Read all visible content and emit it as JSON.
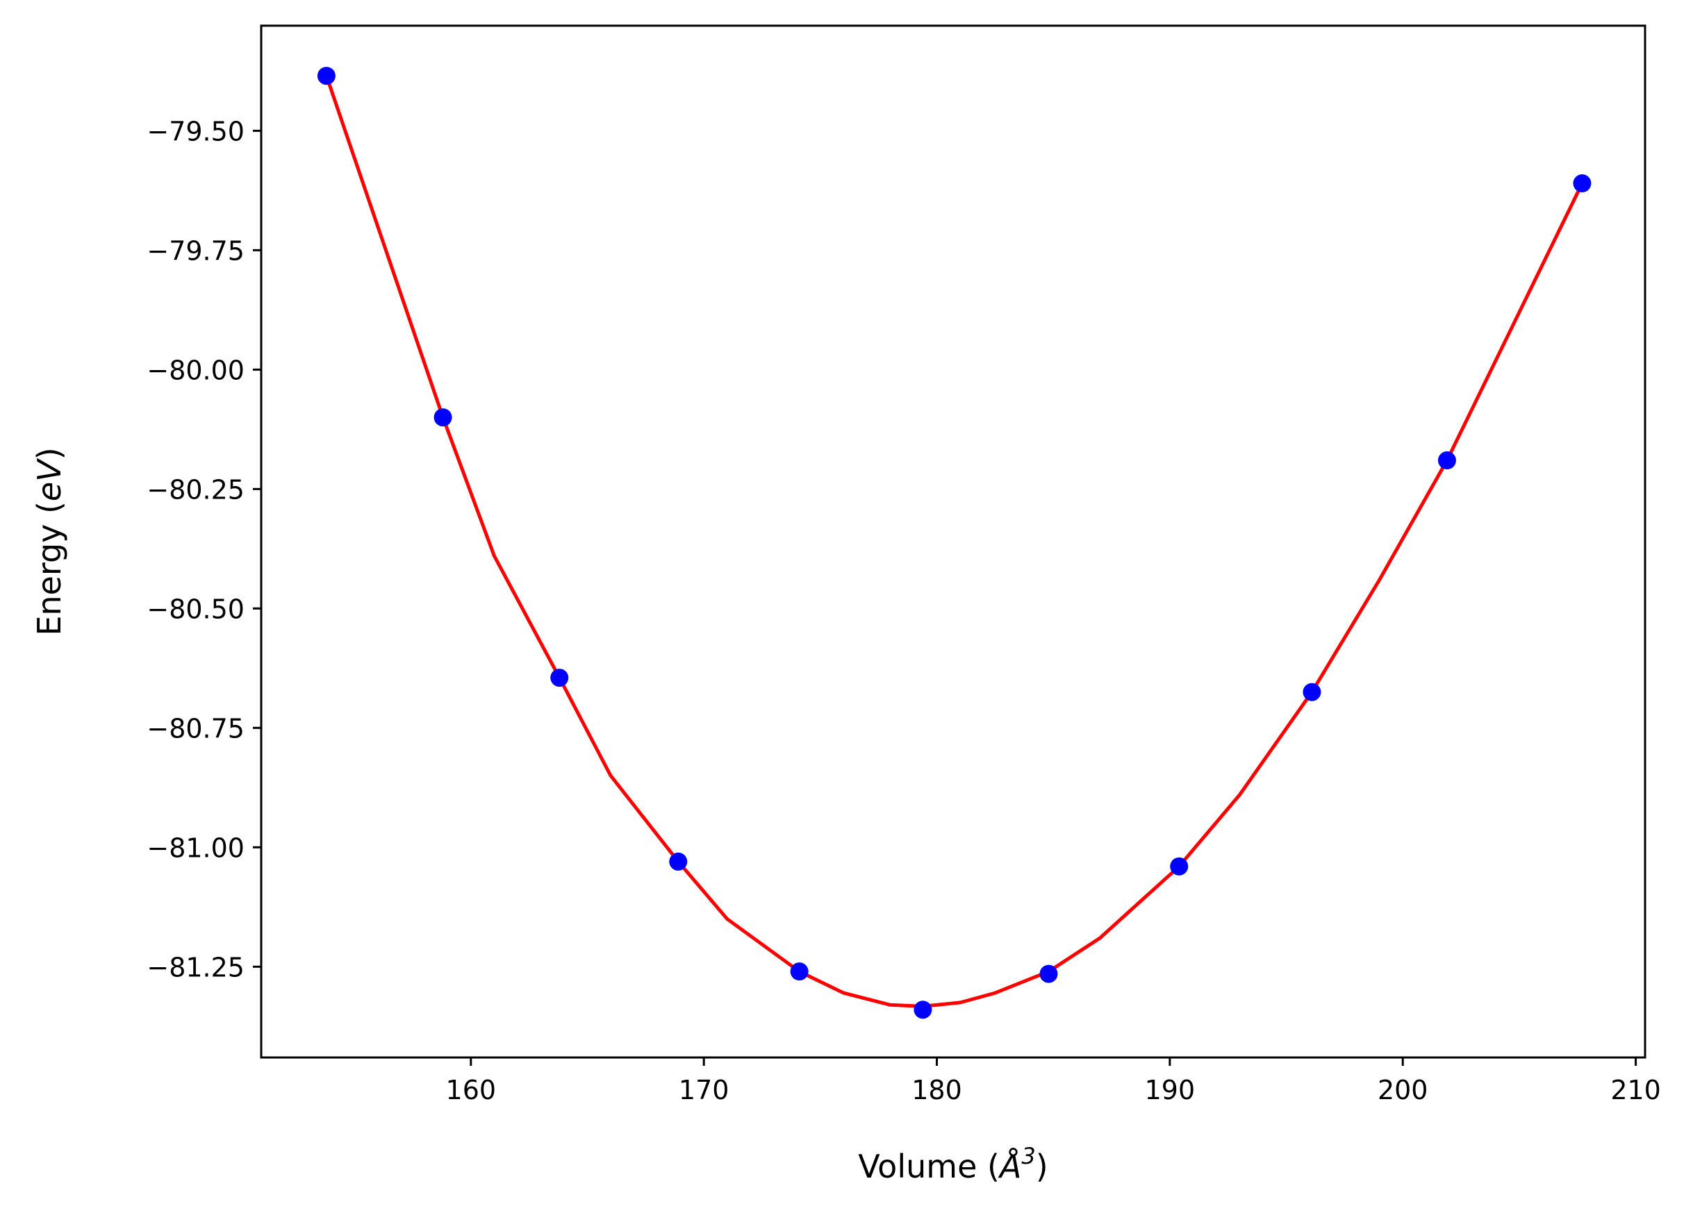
{
  "chart_data": {
    "type": "scatter",
    "xlabel_parts": [
      "Volume (",
      "Å",
      "3",
      ")"
    ],
    "ylabel_parts": [
      "Energy (",
      "eV",
      ")"
    ],
    "xlim": [
      151.0,
      210.4
    ],
    "ylim": [
      -81.44,
      -79.28
    ],
    "x_ticks": [
      160,
      170,
      180,
      190,
      200,
      210
    ],
    "x_tick_labels": [
      "160",
      "170",
      "180",
      "190",
      "200",
      "210"
    ],
    "y_ticks": [
      -79.5,
      -79.75,
      -80.0,
      -80.25,
      -80.5,
      -80.75,
      -81.0,
      -81.25
    ],
    "y_tick_labels": [
      "−79.50",
      "−79.75",
      "−80.00",
      "−80.25",
      "−80.50",
      "−80.75",
      "−81.00",
      "−81.25"
    ],
    "grid": false,
    "legend": "none",
    "series": [
      {
        "kind": "points",
        "color": "#0000ff",
        "x": [
          153.8,
          158.8,
          163.8,
          168.9,
          174.1,
          179.4,
          184.8,
          190.4,
          196.1,
          201.9,
          207.7
        ],
        "y": [
          -79.385,
          -80.1,
          -80.645,
          -81.03,
          -81.26,
          -81.34,
          -81.265,
          -81.04,
          -80.675,
          -80.19,
          -79.61
        ]
      },
      {
        "kind": "fit-line",
        "color": "#ff0000",
        "x": [
          153.8,
          156.0,
          158.8,
          161.0,
          163.8,
          166.0,
          168.9,
          171.0,
          174.1,
          176.0,
          178.0,
          179.4,
          181.0,
          182.5,
          184.8,
          187.0,
          190.4,
          193.0,
          196.1,
          199.0,
          201.9,
          204.5,
          207.7
        ],
        "y": [
          -79.385,
          -79.7,
          -80.1,
          -80.39,
          -80.645,
          -80.85,
          -81.03,
          -81.15,
          -81.26,
          -81.305,
          -81.33,
          -81.333,
          -81.325,
          -81.305,
          -81.26,
          -81.19,
          -81.04,
          -80.89,
          -80.675,
          -80.44,
          -80.19,
          -79.93,
          -79.61
        ]
      }
    ]
  }
}
